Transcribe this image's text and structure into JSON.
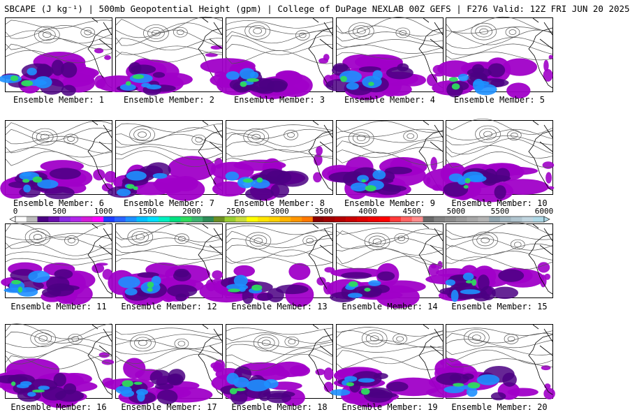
{
  "header": {
    "title": "SBCAPE (J kg⁻¹) | 500mb Geopotential Height (gpm) | College of DuPage NEXLAB 00Z GEFS | F276 Valid: 12Z FRI JUN 20 2025"
  },
  "panels": [
    {
      "caption": "Ensemble Member: 1"
    },
    {
      "caption": "Ensemble Member: 2"
    },
    {
      "caption": "Ensemble Member: 3"
    },
    {
      "caption": "Ensemble Member: 4"
    },
    {
      "caption": "Ensemble Member: 5"
    },
    {
      "caption": "Ensemble Member: 6"
    },
    {
      "caption": "Ensemble Member: 7"
    },
    {
      "caption": "Ensemble Member: 8"
    },
    {
      "caption": "Ensemble Member: 9"
    },
    {
      "caption": "Ensemble Member: 10"
    },
    {
      "caption": "Ensemble Member: 11"
    },
    {
      "caption": "Ensemble Member: 12"
    },
    {
      "caption": "Ensemble Member: 13"
    },
    {
      "caption": "Ensemble Member: 14"
    },
    {
      "caption": "Ensemble Member: 15"
    },
    {
      "caption": "Ensemble Member: 16"
    },
    {
      "caption": "Ensemble Member: 17"
    },
    {
      "caption": "Ensemble Member: 18"
    },
    {
      "caption": "Ensemble Member: 19"
    },
    {
      "caption": "Ensemble Member: 20"
    }
  ],
  "colorbar": {
    "ticks": [
      "0",
      "500",
      "1000",
      "1500",
      "2000",
      "2500",
      "3000",
      "3500",
      "4000",
      "4500",
      "5000",
      "5500",
      "6000"
    ],
    "colors": [
      "#ffffff",
      "#bbbbbb",
      "#4b0082",
      "#6a0dad",
      "#8a2be2",
      "#b026e8",
      "#d21bd8",
      "#ff00ff",
      "#1e3cff",
      "#2a64ff",
      "#1e90ff",
      "#00bfff",
      "#00e0ff",
      "#00f0c0",
      "#00e080",
      "#2edb5e",
      "#3cb371",
      "#2e8b57",
      "#6b8e23",
      "#9acd32",
      "#c8dc3c",
      "#ffff00",
      "#ffe400",
      "#ffd200",
      "#ffb400",
      "#ff9600",
      "#ff7800",
      "#8b0000",
      "#a00000",
      "#b40000",
      "#c80000",
      "#dc0000",
      "#f00000",
      "#ff0000",
      "#ff3a3a",
      "#ff6464",
      "#ff8c8c",
      "#696969",
      "#808080",
      "#8c8c8c",
      "#999999",
      "#a6a6a6",
      "#b3b3b3",
      "#90a4ae",
      "#a0b4be",
      "#b0c4ce",
      "#c0d4de",
      "#add8e6"
    ]
  }
}
